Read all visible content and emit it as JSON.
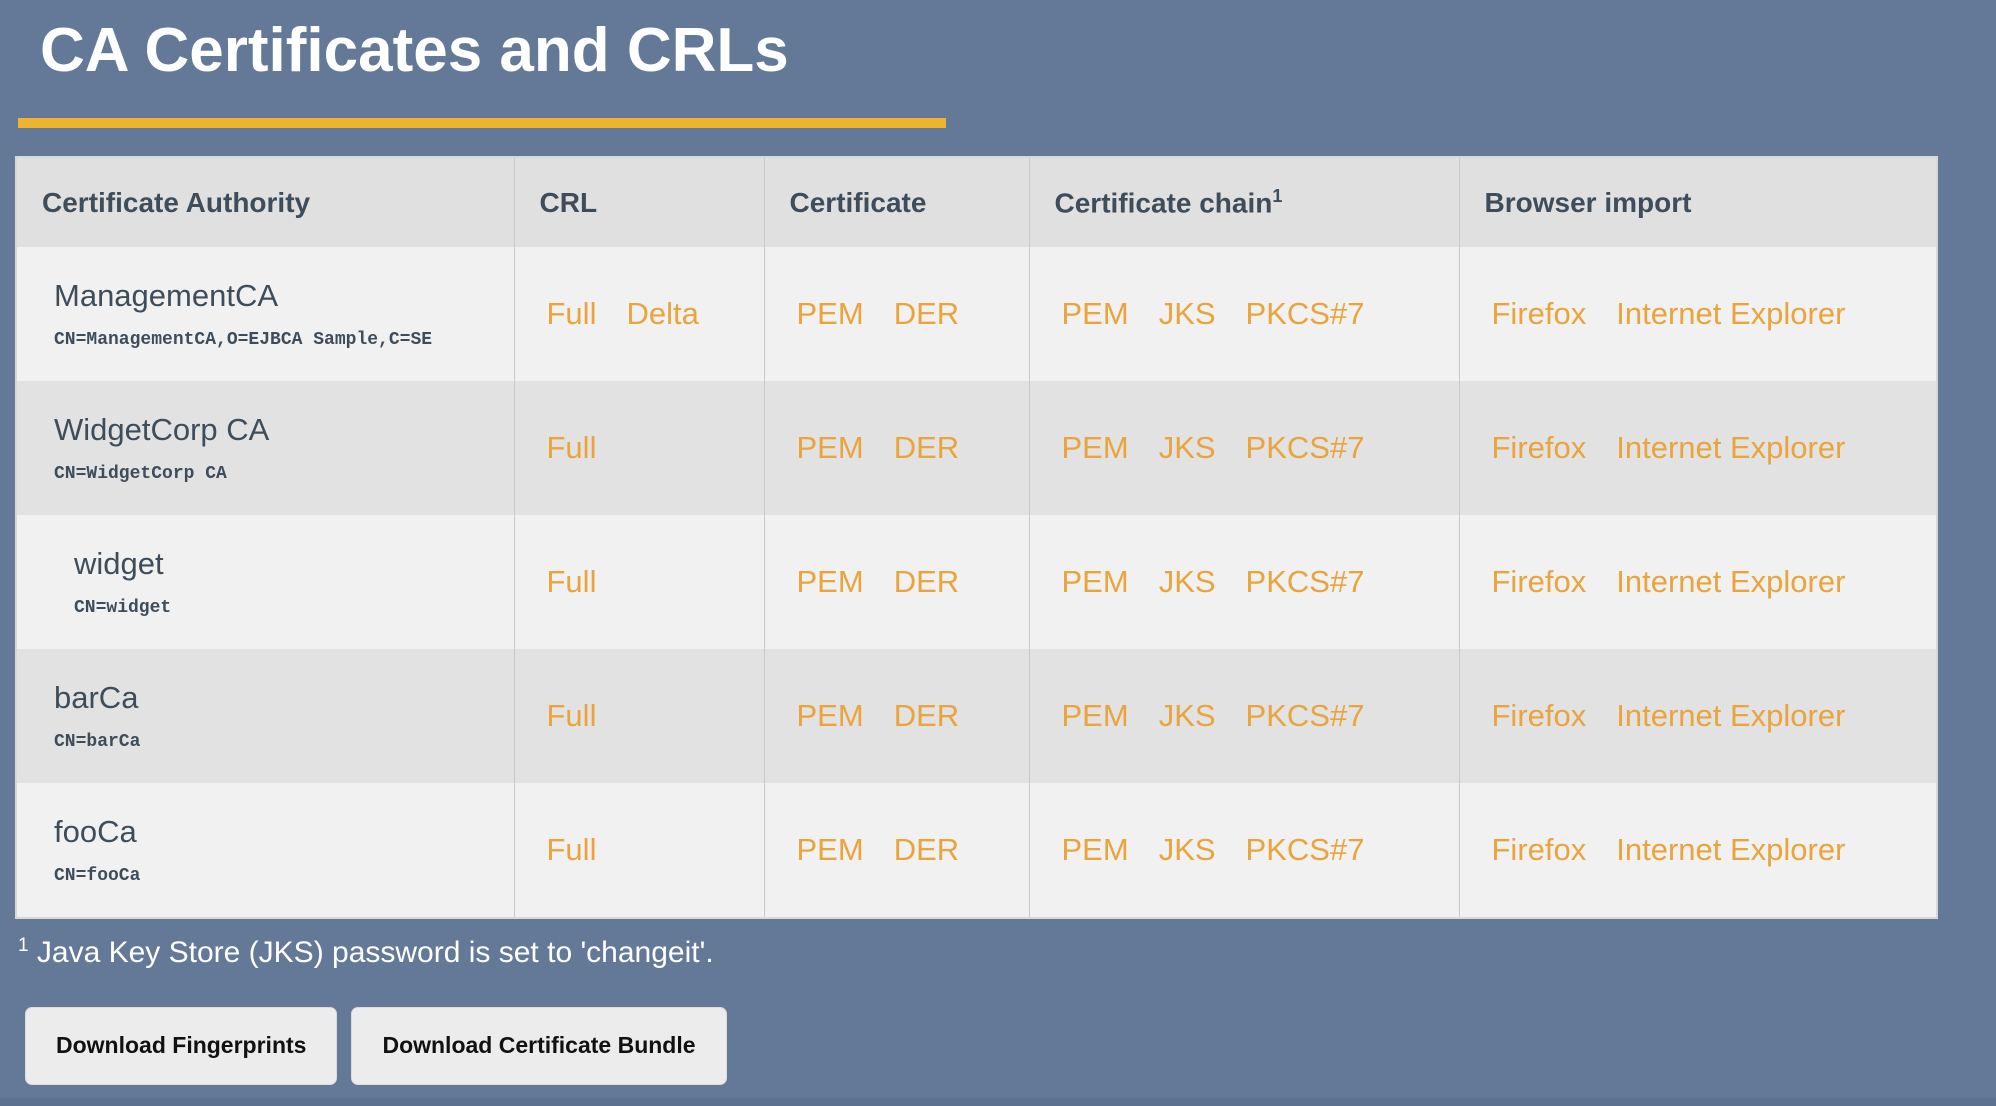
{
  "page": {
    "title": "CA Certificates and CRLs",
    "footnote_marker": "1",
    "footnote_text": " Java Key Store (JKS) password is set to 'changeit'."
  },
  "colors": {
    "background": "#647998",
    "accent_rule": "#EEB32F",
    "link": "#E9A43C",
    "header_text": "#3F4D5A",
    "row_light": "#F1F1F1",
    "row_dark": "#E2E2E2"
  },
  "table": {
    "columns": [
      {
        "key": "certificate-authority",
        "label": "Certificate Authority"
      },
      {
        "key": "crl",
        "label": "CRL"
      },
      {
        "key": "certificate",
        "label": "Certificate"
      },
      {
        "key": "certificate-chain",
        "label": "Certificate chain",
        "sup": "1"
      },
      {
        "key": "browser-import",
        "label": "Browser import"
      }
    ],
    "rows": [
      {
        "name": "ManagementCA",
        "dn": "CN=ManagementCA,O=EJBCA Sample,C=SE",
        "sub_ca": false,
        "crl_links": [
          "Full",
          "Delta"
        ],
        "certificate_links": [
          "PEM",
          "DER"
        ],
        "chain_links": [
          "PEM",
          "JKS",
          "PKCS#7"
        ],
        "browser_links": [
          "Firefox",
          "Internet Explorer"
        ]
      },
      {
        "name": "WidgetCorp CA",
        "dn": "CN=WidgetCorp CA",
        "sub_ca": false,
        "crl_links": [
          "Full"
        ],
        "certificate_links": [
          "PEM",
          "DER"
        ],
        "chain_links": [
          "PEM",
          "JKS",
          "PKCS#7"
        ],
        "browser_links": [
          "Firefox",
          "Internet Explorer"
        ]
      },
      {
        "name": "widget",
        "dn": "CN=widget",
        "sub_ca": true,
        "crl_links": [
          "Full"
        ],
        "certificate_links": [
          "PEM",
          "DER"
        ],
        "chain_links": [
          "PEM",
          "JKS",
          "PKCS#7"
        ],
        "browser_links": [
          "Firefox",
          "Internet Explorer"
        ]
      },
      {
        "name": "barCa",
        "dn": "CN=barCa",
        "sub_ca": false,
        "crl_links": [
          "Full"
        ],
        "certificate_links": [
          "PEM",
          "DER"
        ],
        "chain_links": [
          "PEM",
          "JKS",
          "PKCS#7"
        ],
        "browser_links": [
          "Firefox",
          "Internet Explorer"
        ]
      },
      {
        "name": "fooCa",
        "dn": "CN=fooCa",
        "sub_ca": false,
        "crl_links": [
          "Full"
        ],
        "certificate_links": [
          "PEM",
          "DER"
        ],
        "chain_links": [
          "PEM",
          "JKS",
          "PKCS#7"
        ],
        "browser_links": [
          "Firefox",
          "Internet Explorer"
        ]
      }
    ]
  },
  "buttons": [
    {
      "key": "download-fingerprints",
      "label": "Download Fingerprints"
    },
    {
      "key": "download-certificate-bundle",
      "label": "Download Certificate Bundle"
    }
  ]
}
